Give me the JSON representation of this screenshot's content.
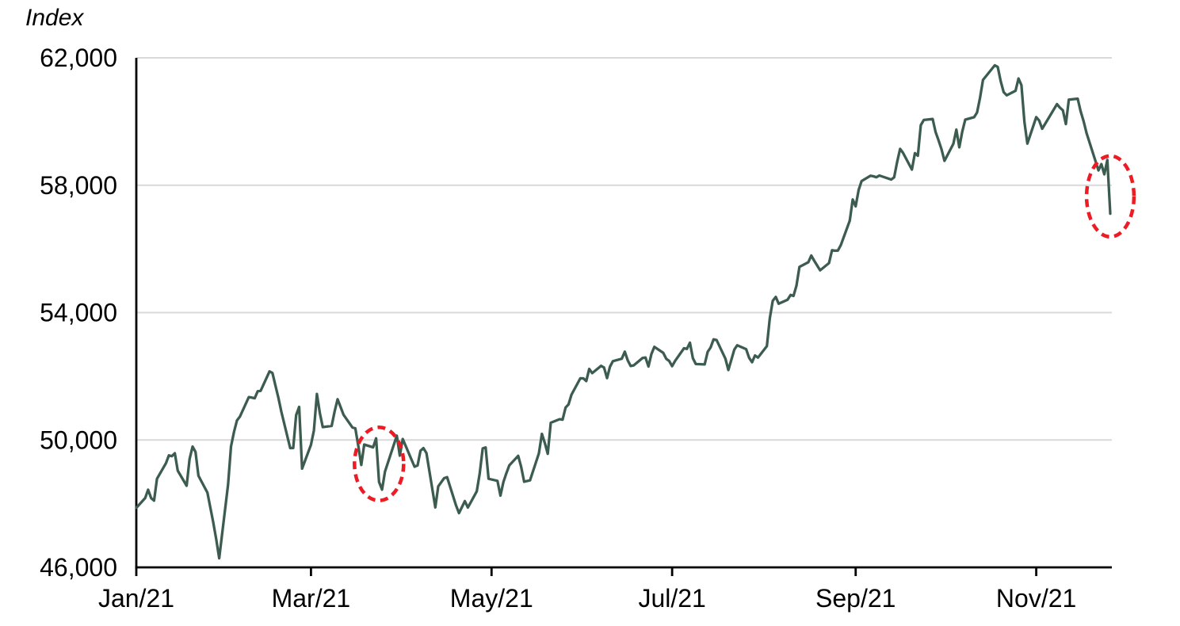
{
  "chart_data": {
    "type": "line",
    "title": "",
    "legend": "none",
    "grid": "horizontal-only",
    "background": "#ffffff",
    "grid_color": "#d9d9d9",
    "axis_color": "#000000",
    "y_axis": {
      "unit_label": "Index",
      "min": 46000,
      "max": 62000,
      "ticks": [
        {
          "value": 46000,
          "label": "46,000"
        },
        {
          "value": 50000,
          "label": "50,000"
        },
        {
          "value": 54000,
          "label": "54,000"
        },
        {
          "value": 58000,
          "label": "58,000"
        },
        {
          "value": 62000,
          "label": "62,000"
        }
      ]
    },
    "x_axis": {
      "start_date": "2021-01-01",
      "end_date": "2021-11-26",
      "ticks": [
        {
          "date": "2021-01-01",
          "label": "Jan/21"
        },
        {
          "date": "2021-03-01",
          "label": "Mar/21"
        },
        {
          "date": "2021-05-01",
          "label": "May/21"
        },
        {
          "date": "2021-07-01",
          "label": "Jul/21"
        },
        {
          "date": "2021-09-01",
          "label": "Sep/21"
        },
        {
          "date": "2021-11-01",
          "label": "Nov/21"
        }
      ]
    },
    "series": [
      {
        "name": "Index",
        "color": "#3c5c50",
        "points": [
          [
            "2021-01-01",
            47869
          ],
          [
            "2021-01-04",
            48177
          ],
          [
            "2021-01-05",
            48438
          ],
          [
            "2021-01-06",
            48174
          ],
          [
            "2021-01-07",
            48094
          ],
          [
            "2021-01-08",
            48783
          ],
          [
            "2021-01-11",
            49269
          ],
          [
            "2021-01-12",
            49517
          ],
          [
            "2021-01-13",
            49492
          ],
          [
            "2021-01-14",
            49584
          ],
          [
            "2021-01-15",
            49035
          ],
          [
            "2021-01-18",
            48564
          ],
          [
            "2021-01-19",
            49398
          ],
          [
            "2021-01-20",
            49792
          ],
          [
            "2021-01-21",
            49625
          ],
          [
            "2021-01-22",
            48879
          ],
          [
            "2021-01-25",
            48348
          ],
          [
            "2021-01-27",
            47410
          ],
          [
            "2021-01-28",
            46874
          ],
          [
            "2021-01-29",
            46286
          ],
          [
            "2021-02-01",
            48601
          ],
          [
            "2021-02-02",
            49797
          ],
          [
            "2021-02-03",
            50256
          ],
          [
            "2021-02-04",
            50614
          ],
          [
            "2021-02-05",
            50732
          ],
          [
            "2021-02-08",
            51348
          ],
          [
            "2021-02-09",
            51329
          ],
          [
            "2021-02-10",
            51309
          ],
          [
            "2021-02-11",
            51532
          ],
          [
            "2021-02-12",
            51544
          ],
          [
            "2021-02-15",
            52154
          ],
          [
            "2021-02-16",
            52104
          ],
          [
            "2021-02-17",
            51704
          ],
          [
            "2021-02-18",
            51325
          ],
          [
            "2021-02-19",
            50890
          ],
          [
            "2021-02-22",
            49744
          ],
          [
            "2021-02-23",
            49751
          ],
          [
            "2021-02-24",
            50782
          ],
          [
            "2021-02-25",
            51039
          ],
          [
            "2021-02-26",
            49100
          ],
          [
            "2021-03-01",
            49850
          ],
          [
            "2021-03-02",
            50297
          ],
          [
            "2021-03-03",
            51445
          ],
          [
            "2021-03-04",
            50846
          ],
          [
            "2021-03-05",
            50405
          ],
          [
            "2021-03-08",
            50441
          ],
          [
            "2021-03-09",
            50902
          ],
          [
            "2021-03-10",
            51280
          ],
          [
            "2021-03-12",
            50792
          ],
          [
            "2021-03-15",
            50395
          ],
          [
            "2021-03-16",
            50364
          ],
          [
            "2021-03-17",
            49802
          ],
          [
            "2021-03-18",
            49216
          ],
          [
            "2021-03-19",
            49858
          ],
          [
            "2021-03-22",
            49771
          ],
          [
            "2021-03-23",
            50051
          ],
          [
            "2021-03-24",
            48684
          ],
          [
            "2021-03-25",
            48440
          ],
          [
            "2021-03-26",
            49009
          ],
          [
            "2021-03-30",
            50136
          ],
          [
            "2021-03-31",
            49509
          ],
          [
            "2021-04-01",
            50030
          ],
          [
            "2021-04-05",
            49159
          ],
          [
            "2021-04-06",
            49201
          ],
          [
            "2021-04-07",
            49662
          ],
          [
            "2021-04-08",
            49746
          ],
          [
            "2021-04-09",
            49591
          ],
          [
            "2021-04-12",
            47883
          ],
          [
            "2021-04-13",
            48544
          ],
          [
            "2021-04-15",
            48803
          ],
          [
            "2021-04-16",
            48832
          ],
          [
            "2021-04-19",
            47949
          ],
          [
            "2021-04-20",
            47705
          ],
          [
            "2021-04-22",
            48080
          ],
          [
            "2021-04-23",
            47878
          ],
          [
            "2021-04-26",
            48386
          ],
          [
            "2021-04-27",
            48944
          ],
          [
            "2021-04-28",
            49734
          ],
          [
            "2021-04-29",
            49766
          ],
          [
            "2021-04-30",
            48782
          ],
          [
            "2021-05-03",
            48718
          ],
          [
            "2021-05-04",
            48254
          ],
          [
            "2021-05-05",
            48677
          ],
          [
            "2021-05-06",
            48950
          ],
          [
            "2021-05-07",
            49206
          ],
          [
            "2021-05-10",
            49502
          ],
          [
            "2021-05-11",
            49161
          ],
          [
            "2021-05-12",
            48691
          ],
          [
            "2021-05-14",
            48733
          ],
          [
            "2021-05-17",
            49581
          ],
          [
            "2021-05-18",
            50193
          ],
          [
            "2021-05-19",
            49903
          ],
          [
            "2021-05-20",
            49565
          ],
          [
            "2021-05-21",
            50540
          ],
          [
            "2021-05-24",
            50652
          ],
          [
            "2021-05-25",
            50638
          ],
          [
            "2021-05-26",
            51018
          ],
          [
            "2021-05-27",
            51115
          ],
          [
            "2021-05-28",
            51423
          ],
          [
            "2021-05-31",
            51937
          ],
          [
            "2021-06-01",
            51935
          ],
          [
            "2021-06-02",
            51849
          ],
          [
            "2021-06-03",
            52232
          ],
          [
            "2021-06-04",
            52100
          ],
          [
            "2021-06-07",
            52328
          ],
          [
            "2021-06-08",
            52276
          ],
          [
            "2021-06-09",
            51941
          ],
          [
            "2021-06-10",
            52300
          ],
          [
            "2021-06-11",
            52474
          ],
          [
            "2021-06-14",
            52552
          ],
          [
            "2021-06-15",
            52773
          ],
          [
            "2021-06-16",
            52502
          ],
          [
            "2021-06-17",
            52323
          ],
          [
            "2021-06-18",
            52344
          ],
          [
            "2021-06-21",
            52574
          ],
          [
            "2021-06-22",
            52588
          ],
          [
            "2021-06-23",
            52307
          ],
          [
            "2021-06-24",
            52699
          ],
          [
            "2021-06-25",
            52925
          ],
          [
            "2021-06-28",
            52735
          ],
          [
            "2021-06-29",
            52549
          ],
          [
            "2021-06-30",
            52483
          ],
          [
            "2021-07-01",
            52318
          ],
          [
            "2021-07-02",
            52484
          ],
          [
            "2021-07-05",
            52880
          ],
          [
            "2021-07-06",
            52861
          ],
          [
            "2021-07-07",
            53055
          ],
          [
            "2021-07-08",
            52569
          ],
          [
            "2021-07-09",
            52386
          ],
          [
            "2021-07-12",
            52372
          ],
          [
            "2021-07-13",
            52769
          ],
          [
            "2021-07-14",
            52904
          ],
          [
            "2021-07-15",
            53159
          ],
          [
            "2021-07-16",
            53140
          ],
          [
            "2021-07-19",
            52553
          ],
          [
            "2021-07-20",
            52199
          ],
          [
            "2021-07-22",
            52837
          ],
          [
            "2021-07-23",
            52976
          ],
          [
            "2021-07-26",
            52852
          ],
          [
            "2021-07-27",
            52579
          ],
          [
            "2021-07-28",
            52443
          ],
          [
            "2021-07-29",
            52653
          ],
          [
            "2021-07-30",
            52587
          ],
          [
            "2021-08-02",
            52951
          ],
          [
            "2021-08-03",
            53823
          ],
          [
            "2021-08-04",
            54370
          ],
          [
            "2021-08-05",
            54493
          ],
          [
            "2021-08-06",
            54278
          ],
          [
            "2021-08-09",
            54403
          ],
          [
            "2021-08-10",
            54555
          ],
          [
            "2021-08-11",
            54526
          ],
          [
            "2021-08-12",
            54843
          ],
          [
            "2021-08-13",
            55437
          ],
          [
            "2021-08-16",
            55583
          ],
          [
            "2021-08-17",
            55792
          ],
          [
            "2021-08-18",
            55629
          ],
          [
            "2021-08-20",
            55329
          ],
          [
            "2021-08-23",
            55556
          ],
          [
            "2021-08-24",
            55959
          ],
          [
            "2021-08-25",
            55944
          ],
          [
            "2021-08-26",
            55949
          ],
          [
            "2021-08-27",
            56125
          ],
          [
            "2021-08-30",
            56890
          ],
          [
            "2021-08-31",
            57552
          ],
          [
            "2021-09-01",
            57338
          ],
          [
            "2021-09-02",
            57853
          ],
          [
            "2021-09-03",
            58130
          ],
          [
            "2021-09-06",
            58297
          ],
          [
            "2021-09-07",
            58279
          ],
          [
            "2021-09-08",
            58251
          ],
          [
            "2021-09-09",
            58305
          ],
          [
            "2021-09-13",
            58177
          ],
          [
            "2021-09-14",
            58247
          ],
          [
            "2021-09-15",
            58723
          ],
          [
            "2021-09-16",
            59141
          ],
          [
            "2021-09-17",
            59016
          ],
          [
            "2021-09-20",
            58491
          ],
          [
            "2021-09-21",
            59006
          ],
          [
            "2021-09-22",
            58927
          ],
          [
            "2021-09-23",
            59885
          ],
          [
            "2021-09-24",
            60048
          ],
          [
            "2021-09-27",
            60078
          ],
          [
            "2021-09-28",
            59668
          ],
          [
            "2021-09-29",
            59413
          ],
          [
            "2021-09-30",
            59126
          ],
          [
            "2021-10-01",
            58766
          ],
          [
            "2021-10-04",
            59299
          ],
          [
            "2021-10-05",
            59745
          ],
          [
            "2021-10-06",
            59190
          ],
          [
            "2021-10-07",
            59678
          ],
          [
            "2021-10-08",
            60059
          ],
          [
            "2021-10-11",
            60136
          ],
          [
            "2021-10-12",
            60284
          ],
          [
            "2021-10-13",
            60737
          ],
          [
            "2021-10-14",
            61306
          ],
          [
            "2021-10-18",
            61766
          ],
          [
            "2021-10-19",
            61716
          ],
          [
            "2021-10-20",
            61260
          ],
          [
            "2021-10-21",
            60923
          ],
          [
            "2021-10-22",
            60822
          ],
          [
            "2021-10-25",
            60967
          ],
          [
            "2021-10-26",
            61350
          ],
          [
            "2021-10-27",
            61144
          ],
          [
            "2021-10-28",
            59985
          ],
          [
            "2021-10-29",
            59307
          ],
          [
            "2021-11-01",
            60139
          ],
          [
            "2021-11-02",
            60030
          ],
          [
            "2021-11-03",
            59772
          ],
          [
            "2021-11-08",
            60546
          ],
          [
            "2021-11-09",
            60434
          ],
          [
            "2021-11-10",
            60353
          ],
          [
            "2021-11-11",
            59920
          ],
          [
            "2021-11-12",
            60687
          ],
          [
            "2021-11-15",
            60719
          ],
          [
            "2021-11-16",
            60322
          ],
          [
            "2021-11-17",
            60008
          ],
          [
            "2021-11-18",
            59636
          ],
          [
            "2021-11-22",
            58466
          ],
          [
            "2021-11-23",
            58664
          ],
          [
            "2021-11-24",
            58341
          ],
          [
            "2021-11-25",
            58795
          ],
          [
            "2021-11-26",
            57107
          ]
        ]
      }
    ],
    "annotations": [
      {
        "shape": "dashed-ellipse",
        "name": "march-dip-highlight",
        "color": "#ed1c24",
        "center_date": "2021-03-24",
        "center_value": 49250,
        "radius_days": 8.3,
        "radius_index": 1150
      },
      {
        "shape": "dashed-ellipse",
        "name": "november-drop-highlight",
        "color": "#ed1c24",
        "center_date": "2021-11-26",
        "center_value": 57650,
        "radius_days": 8.0,
        "radius_index": 1270
      }
    ]
  }
}
